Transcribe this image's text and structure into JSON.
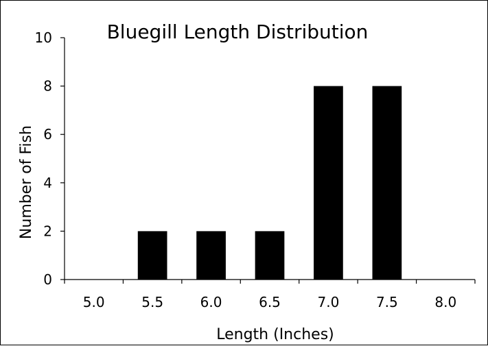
{
  "chart_data": {
    "type": "bar",
    "title": "Bluegill Length Distribution",
    "xlabel": "Length (Inches)",
    "ylabel": "Number of Fish",
    "categories": [
      "5.0",
      "5.5",
      "6.0",
      "6.5",
      "7.0",
      "7.5",
      "8.0"
    ],
    "values": [
      0,
      2,
      2,
      2,
      8,
      8,
      0
    ],
    "ylim": [
      0,
      10
    ],
    "yticks": [
      "0",
      "2",
      "4",
      "6",
      "8",
      "10"
    ],
    "grid": false,
    "legend": "none",
    "bar_color": "#000000"
  }
}
